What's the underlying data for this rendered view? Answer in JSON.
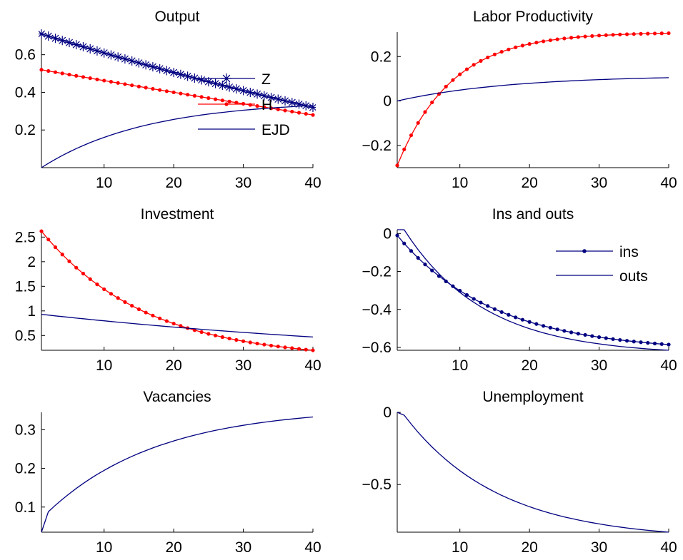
{
  "colors": {
    "red": "#ff0000",
    "blue": "#000080",
    "axis": "#000000"
  },
  "chart_data": [
    {
      "type": "line",
      "title": "Output",
      "xlim": [
        1,
        40
      ],
      "ylim": [
        0,
        0.72
      ],
      "xticks": [
        10,
        20,
        30,
        40
      ],
      "xtick_labels": [
        "10",
        "20",
        "30",
        "40"
      ],
      "yticks": [
        0.2,
        0.4,
        0.6
      ],
      "ytick_labels": [
        "0.2",
        "0.4",
        "0.6"
      ],
      "legend": "inside-right",
      "series": [
        {
          "name": "Z",
          "color": "#000080",
          "marker": "star",
          "points": [
            [
              1,
              0.71
            ],
            [
              40,
              0.32
            ]
          ],
          "curve": 0.3
        },
        {
          "name": "H",
          "color": "#ff0000",
          "marker": "dot",
          "points": [
            [
              1,
              0.52
            ],
            [
              40,
              0.28
            ]
          ],
          "curve": 0.1
        },
        {
          "name": "EJD",
          "color": "#000080",
          "marker": "none",
          "points": [
            [
              1,
              0.0
            ],
            [
              40,
              0.33
            ]
          ],
          "curve": 2.6
        }
      ]
    },
    {
      "type": "line",
      "title": "Labor Productivity",
      "xlim": [
        1,
        40
      ],
      "ylim": [
        -0.3,
        0.31
      ],
      "xticks": [
        10,
        20,
        30,
        40
      ],
      "xtick_labels": [
        "10",
        "20",
        "30",
        "40"
      ],
      "yticks": [
        -0.2,
        0,
        0.2
      ],
      "ytick_labels": [
        "−0.2",
        "0",
        "0.2"
      ],
      "series": [
        {
          "color": "#ff0000",
          "marker": "dot",
          "points": [
            [
              1,
              -0.29
            ],
            [
              40,
              0.305
            ]
          ],
          "curve": 5.0
        },
        {
          "color": "#000080",
          "marker": "none",
          "points": [
            [
              1,
              0.0
            ],
            [
              40,
              0.105
            ]
          ],
          "curve": 2.4
        }
      ]
    },
    {
      "type": "line",
      "title": "Investment",
      "xlim": [
        1,
        40
      ],
      "ylim": [
        0.2,
        2.65
      ],
      "xticks": [
        10,
        20,
        30,
        40
      ],
      "xtick_labels": [
        "10",
        "20",
        "30",
        "40"
      ],
      "yticks": [
        0.5,
        1,
        1.5,
        2,
        2.5
      ],
      "ytick_labels": [
        "0.5",
        "1",
        "1.5",
        "2",
        "2.5"
      ],
      "series": [
        {
          "color": "#ff0000",
          "marker": "dot",
          "points": [
            [
              1,
              2.62
            ],
            [
              40,
              0.2
            ]
          ],
          "curve": 2.6
        },
        {
          "color": "#000080",
          "marker": "none",
          "points": [
            [
              1,
              0.93
            ],
            [
              40,
              0.47
            ]
          ],
          "curve": 0.6
        }
      ]
    },
    {
      "type": "line",
      "title": "Ins and outs",
      "xlim": [
        1,
        40
      ],
      "ylim": [
        -0.615,
        0.02
      ],
      "xticks": [
        10,
        20,
        30,
        40
      ],
      "xtick_labels": [
        "10",
        "20",
        "30",
        "40"
      ],
      "yticks": [
        -0.6,
        -0.4,
        -0.2,
        0
      ],
      "ytick_labels": [
        "−0.6",
        "−0.4",
        "−0.2",
        "0"
      ],
      "legend": "upper-right",
      "series": [
        {
          "name": "ins",
          "color": "#000080",
          "marker": "dot",
          "points": [
            [
              1,
              -0.01
            ],
            [
              40,
              -0.585
            ]
          ],
          "curve": 2.8
        },
        {
          "name": "outs",
          "color": "#000080",
          "marker": "none",
          "points": [
            [
              1,
              0.02
            ],
            [
              2,
              0.02
            ],
            [
              40,
              -0.615
            ]
          ],
          "curve": 3.3,
          "knot": 2
        }
      ]
    },
    {
      "type": "line",
      "title": "Vacancies",
      "xlim": [
        1,
        40
      ],
      "ylim": [
        0.035,
        0.345
      ],
      "xticks": [
        10,
        20,
        30,
        40
      ],
      "xtick_labels": [
        "10",
        "20",
        "30",
        "40"
      ],
      "yticks": [
        0.1,
        0.2,
        0.3
      ],
      "ytick_labels": [
        "0.1",
        "0.2",
        "0.3"
      ],
      "series": [
        {
          "color": "#000080",
          "marker": "none",
          "points": [
            [
              1,
              0.035
            ],
            [
              2,
              0.088
            ],
            [
              40,
              0.333
            ]
          ],
          "curve": 2.4,
          "knot": 2
        }
      ]
    },
    {
      "type": "line",
      "title": "Unemployment",
      "xlim": [
        1,
        40
      ],
      "ylim": [
        -0.83,
        0.0
      ],
      "xticks": [
        10,
        20,
        30,
        40
      ],
      "xtick_labels": [
        "10",
        "20",
        "30",
        "40"
      ],
      "yticks": [
        -0.5,
        0
      ],
      "ytick_labels": [
        "−0.5",
        "0"
      ],
      "series": [
        {
          "color": "#000080",
          "marker": "none",
          "points": [
            [
              1,
              0.0
            ],
            [
              2,
              -0.02
            ],
            [
              40,
              -0.83
            ]
          ],
          "curve": 2.8,
          "knot": 2
        }
      ]
    }
  ]
}
